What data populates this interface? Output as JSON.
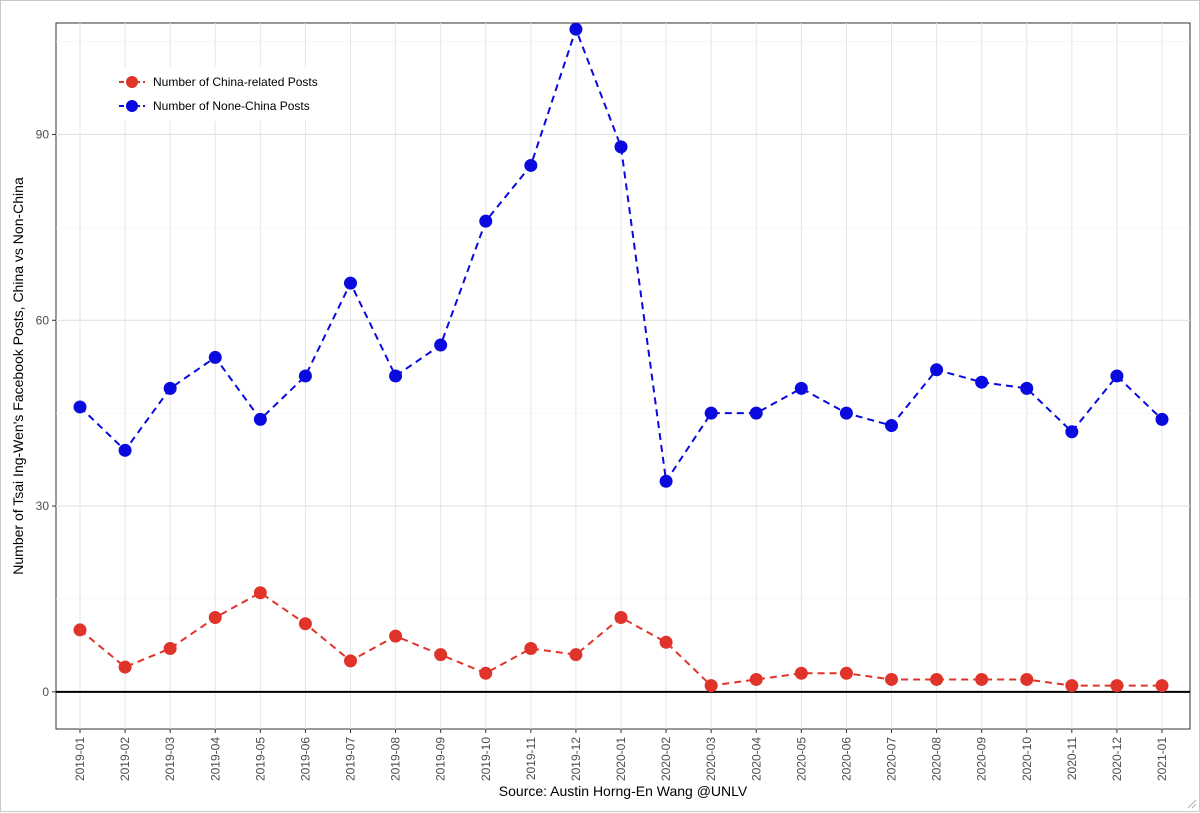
{
  "chart_data": {
    "type": "line",
    "title": "",
    "xlabel": "Source: Austin Horng-En Wang @UNLV",
    "ylabel": "Number of Tsai Ing-Wen's Facebook Posts, China vs Non-China",
    "categories": [
      "2019-01",
      "2019-02",
      "2019-03",
      "2019-04",
      "2019-05",
      "2019-06",
      "2019-07",
      "2019-08",
      "2019-09",
      "2019-10",
      "2019-11",
      "2019-12",
      "2020-01",
      "2020-02",
      "2020-03",
      "2020-04",
      "2020-05",
      "2020-06",
      "2020-07",
      "2020-08",
      "2020-09",
      "2020-10",
      "2020-11",
      "2020-12",
      "2021-01"
    ],
    "yticks": [
      0,
      30,
      60,
      90
    ],
    "ylim": [
      -6,
      108
    ],
    "grid": true,
    "legend_position": "top-left",
    "series": [
      {
        "name": "Number of China-related Posts",
        "color": "#e0342b",
        "line_style": "dashed",
        "values": [
          10,
          4,
          7,
          12,
          16,
          11,
          5,
          9,
          6,
          3,
          7,
          6,
          12,
          8,
          1,
          2,
          3,
          3,
          2,
          2,
          2,
          2,
          1,
          1,
          1
        ]
      },
      {
        "name": "Number of None-China Posts",
        "color": "#0a0adf",
        "line_style": "dashed",
        "values": [
          46,
          39,
          49,
          54,
          44,
          51,
          66,
          51,
          56,
          76,
          85,
          107,
          88,
          34,
          45,
          45,
          49,
          45,
          43,
          52,
          50,
          49,
          42,
          51,
          44
        ]
      }
    ]
  }
}
